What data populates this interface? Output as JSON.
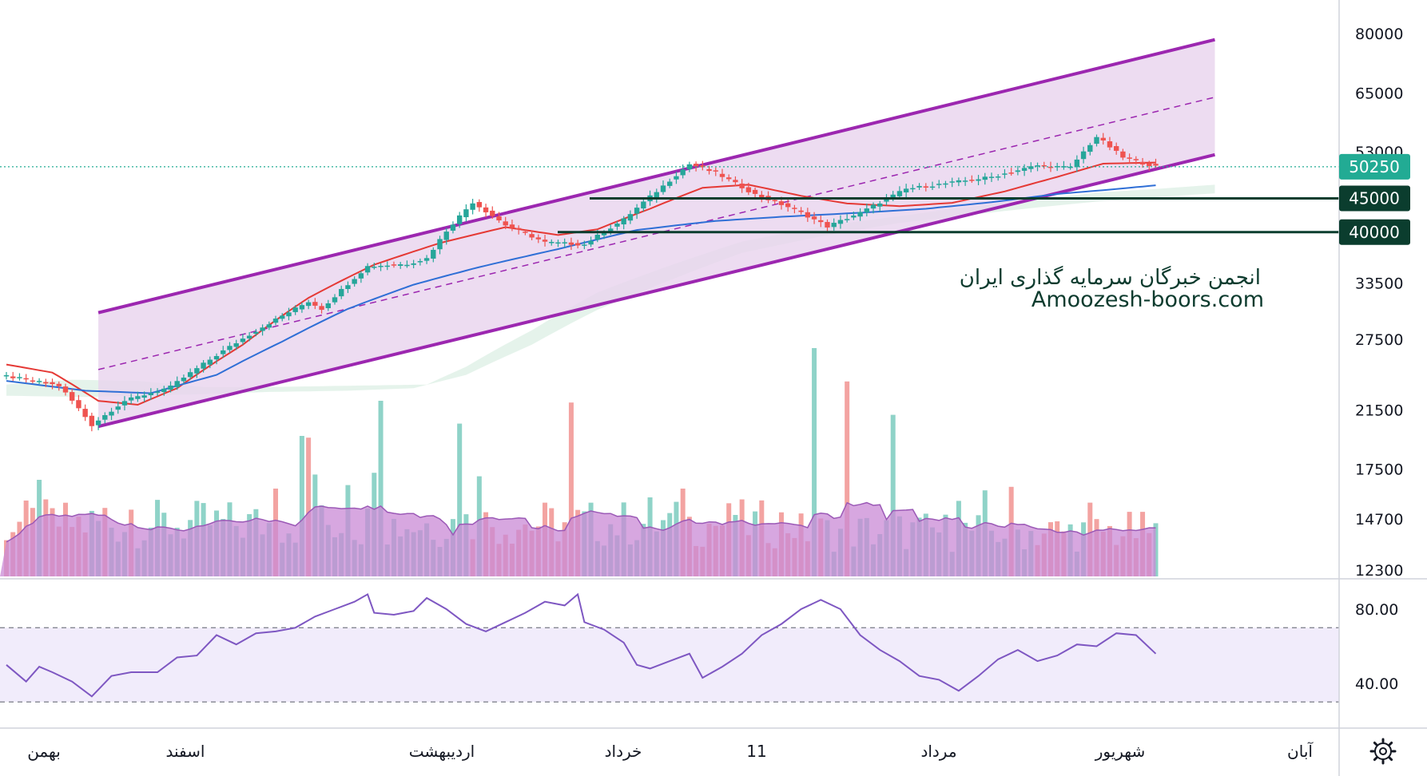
{
  "watermark": {
    "line1": "انجمن خبرگان سرمایه گذاری ایران",
    "line2": "Amoozesh-boors.com"
  },
  "colors": {
    "up": "#26a69a",
    "down": "#ef5350",
    "channel": "#9c27b0",
    "channel_fill": "#e8d3ee",
    "ma_fast": "#e53935",
    "ma_slow": "#2f6fd6",
    "level_line": "#0b3d2e",
    "last_price": "#22ab94",
    "volume_ma_fill": "#c98ad6",
    "rsi_line": "#7e57c2",
    "rsi_band": "#f1ecfb"
  },
  "icons": {
    "settings": "gear-icon"
  },
  "chart_data": [
    {
      "type": "candlestick",
      "title": "",
      "price_axis": {
        "scale": "log",
        "ticks": [
          "80000",
          "65000",
          "53000",
          "33500",
          "27500",
          "21500",
          "17500",
          "14700",
          "12300"
        ]
      },
      "time_axis": {
        "ticks": [
          "بهمن",
          "اسفند",
          "اردیبهشت",
          "خرداد",
          "11",
          "مرداد",
          "شهریور",
          "آبان"
        ]
      },
      "last_price": {
        "label": "50250",
        "value": 50250
      },
      "horizontal_levels": [
        {
          "label": "45000",
          "value": 45000
        },
        {
          "label": "40000",
          "value": 40000
        }
      ],
      "close_path": [
        [
          0,
          24200
        ],
        [
          8,
          23400
        ],
        [
          13,
          20400
        ],
        [
          18,
          22200
        ],
        [
          25,
          23300
        ],
        [
          35,
          27200
        ],
        [
          46,
          31400
        ],
        [
          48,
          30600
        ],
        [
          55,
          35500
        ],
        [
          61,
          35800
        ],
        [
          64,
          36500
        ],
        [
          67,
          40200
        ],
        [
          71,
          44400
        ],
        [
          76,
          41000
        ],
        [
          82,
          38600
        ],
        [
          88,
          38300
        ],
        [
          94,
          41800
        ],
        [
          100,
          47000
        ],
        [
          104,
          50700
        ],
        [
          108,
          49200
        ],
        [
          114,
          45600
        ],
        [
          120,
          43300
        ],
        [
          125,
          40800
        ],
        [
          130,
          42800
        ],
        [
          137,
          46500
        ],
        [
          143,
          47400
        ],
        [
          150,
          48500
        ],
        [
          157,
          50500
        ],
        [
          162,
          50100
        ],
        [
          166,
          55800
        ],
        [
          170,
          51900
        ],
        [
          175,
          50250
        ]
      ],
      "ma_fast_path": [
        [
          0,
          25200
        ],
        [
          7,
          24500
        ],
        [
          14,
          22200
        ],
        [
          20,
          21900
        ],
        [
          26,
          23200
        ],
        [
          36,
          27000
        ],
        [
          46,
          31800
        ],
        [
          56,
          35700
        ],
        [
          66,
          38500
        ],
        [
          76,
          40700
        ],
        [
          84,
          39600
        ],
        [
          90,
          40400
        ],
        [
          98,
          43400
        ],
        [
          106,
          46700
        ],
        [
          113,
          47200
        ],
        [
          121,
          45400
        ],
        [
          128,
          44200
        ],
        [
          136,
          43800
        ],
        [
          144,
          44300
        ],
        [
          152,
          46100
        ],
        [
          160,
          48500
        ],
        [
          167,
          50800
        ],
        [
          175,
          51000
        ]
      ],
      "ma_slow_path": [
        [
          0,
          23800
        ],
        [
          12,
          23000
        ],
        [
          22,
          22800
        ],
        [
          32,
          24300
        ],
        [
          42,
          27300
        ],
        [
          52,
          30600
        ],
        [
          62,
          33300
        ],
        [
          72,
          35400
        ],
        [
          84,
          37700
        ],
        [
          96,
          40300
        ],
        [
          108,
          41600
        ],
        [
          118,
          42200
        ],
        [
          130,
          42800
        ],
        [
          140,
          43400
        ],
        [
          150,
          44400
        ],
        [
          160,
          45700
        ],
        [
          168,
          46400
        ],
        [
          175,
          47100
        ]
      ],
      "channel": {
        "upper_start": [
          14,
          30200
        ],
        "upper_end": [
          184,
          78300
        ],
        "lower_start": [
          14,
          20300
        ],
        "lower_end": [
          184,
          52400
        ]
      },
      "ichimoku_cloud_bottom": [
        [
          0,
          22600
        ],
        [
          12,
          22500
        ],
        [
          28,
          22700
        ],
        [
          40,
          22900
        ],
        [
          52,
          23000
        ],
        [
          62,
          23200
        ],
        [
          70,
          24300
        ],
        [
          80,
          27000
        ],
        [
          90,
          30500
        ],
        [
          100,
          33500
        ],
        [
          112,
          37200
        ],
        [
          124,
          39400
        ],
        [
          136,
          41300
        ],
        [
          146,
          42400
        ],
        [
          156,
          43500
        ],
        [
          166,
          44500
        ],
        [
          175,
          45200
        ],
        [
          184,
          45800
        ]
      ],
      "ichimoku_cloud_top": [
        [
          0,
          23500
        ],
        [
          10,
          23900
        ],
        [
          20,
          23800
        ],
        [
          30,
          23300
        ],
        [
          40,
          23300
        ],
        [
          52,
          23400
        ],
        [
          64,
          23500
        ],
        [
          70,
          25000
        ],
        [
          80,
          28400
        ],
        [
          90,
          32400
        ],
        [
          100,
          35300
        ],
        [
          112,
          38700
        ],
        [
          124,
          40800
        ],
        [
          136,
          42300
        ],
        [
          146,
          43600
        ],
        [
          156,
          44800
        ],
        [
          166,
          45900
        ],
        [
          175,
          46500
        ],
        [
          184,
          47200
        ]
      ]
    },
    {
      "type": "bar",
      "name": "volume",
      "tall_bars": [
        {
          "i": 5,
          "v": 0.55,
          "up": true
        },
        {
          "i": 15,
          "v": 0.39,
          "up": false
        },
        {
          "i": 19,
          "v": 0.38,
          "up": false
        },
        {
          "i": 29,
          "v": 0.43,
          "up": true
        },
        {
          "i": 41,
          "v": 0.5,
          "up": false
        },
        {
          "i": 45,
          "v": 0.8,
          "up": true
        },
        {
          "i": 46,
          "v": 0.79,
          "up": false
        },
        {
          "i": 47,
          "v": 0.58,
          "up": true
        },
        {
          "i": 52,
          "v": 0.52,
          "up": true
        },
        {
          "i": 56,
          "v": 0.59,
          "up": true
        },
        {
          "i": 57,
          "v": 1.0,
          "up": true
        },
        {
          "i": 69,
          "v": 0.87,
          "up": true
        },
        {
          "i": 72,
          "v": 0.57,
          "up": true
        },
        {
          "i": 86,
          "v": 0.99,
          "up": false
        },
        {
          "i": 98,
          "v": 0.45,
          "up": true
        },
        {
          "i": 103,
          "v": 0.5,
          "up": false
        },
        {
          "i": 111,
          "v": 0.35,
          "up": true
        },
        {
          "i": 114,
          "v": 0.37,
          "up": true
        },
        {
          "i": 123,
          "v": 1.3,
          "up": true
        },
        {
          "i": 128,
          "v": 1.11,
          "up": false
        },
        {
          "i": 135,
          "v": 0.92,
          "up": true
        },
        {
          "i": 145,
          "v": 0.43,
          "up": true
        },
        {
          "i": 149,
          "v": 0.49,
          "up": true
        },
        {
          "i": 153,
          "v": 0.51,
          "up": false
        },
        {
          "i": 165,
          "v": 0.42,
          "up": false
        }
      ]
    },
    {
      "type": "line",
      "name": "RSI",
      "axis_ticks": [
        "80.00",
        "40.00"
      ],
      "band": [
        30,
        70
      ],
      "values": [
        [
          0,
          50
        ],
        [
          3,
          41
        ],
        [
          5,
          49
        ],
        [
          7,
          46
        ],
        [
          10,
          41
        ],
        [
          13,
          33
        ],
        [
          16,
          44
        ],
        [
          19,
          46
        ],
        [
          23,
          46
        ],
        [
          26,
          54
        ],
        [
          29,
          55
        ],
        [
          32,
          66
        ],
        [
          35,
          61
        ],
        [
          38,
          67
        ],
        [
          41,
          68
        ],
        [
          44,
          70
        ],
        [
          47,
          76
        ],
        [
          50,
          80
        ],
        [
          53,
          84
        ],
        [
          55,
          88
        ],
        [
          56,
          78
        ],
        [
          59,
          77
        ],
        [
          62,
          79
        ],
        [
          64,
          86
        ],
        [
          67,
          80
        ],
        [
          70,
          72
        ],
        [
          73,
          68
        ],
        [
          76,
          73
        ],
        [
          79,
          78
        ],
        [
          82,
          84
        ],
        [
          85,
          82
        ],
        [
          87,
          88
        ],
        [
          88,
          73
        ],
        [
          91,
          69
        ],
        [
          94,
          62
        ],
        [
          96,
          50
        ],
        [
          98,
          48
        ],
        [
          101,
          52
        ],
        [
          104,
          56
        ],
        [
          106,
          43
        ],
        [
          109,
          49
        ],
        [
          112,
          56
        ],
        [
          115,
          66
        ],
        [
          118,
          72
        ],
        [
          121,
          80
        ],
        [
          124,
          85
        ],
        [
          127,
          80
        ],
        [
          130,
          66
        ],
        [
          133,
          58
        ],
        [
          136,
          52
        ],
        [
          139,
          44
        ],
        [
          142,
          42
        ],
        [
          145,
          36
        ],
        [
          148,
          44
        ],
        [
          151,
          53
        ],
        [
          154,
          58
        ],
        [
          157,
          52
        ],
        [
          160,
          55
        ],
        [
          163,
          61
        ],
        [
          166,
          60
        ],
        [
          169,
          67
        ],
        [
          172,
          66
        ],
        [
          175,
          56
        ]
      ]
    }
  ]
}
